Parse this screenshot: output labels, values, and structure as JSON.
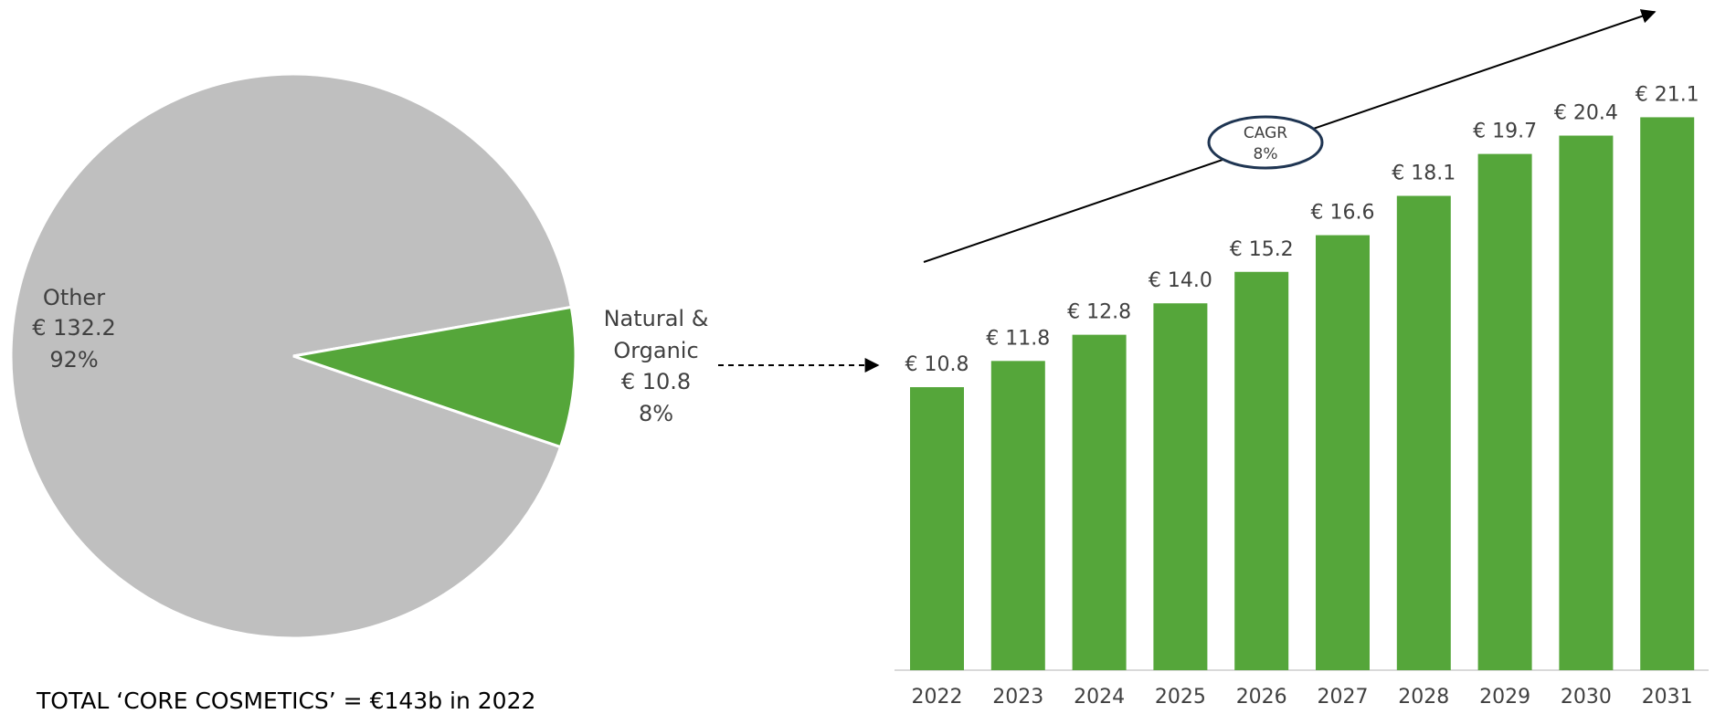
{
  "chart_data": [
    {
      "type": "pie",
      "categories": [
        "Other",
        "Natural & Organic"
      ],
      "values": [
        92,
        8
      ],
      "value_labels": [
        "92%",
        "8%"
      ],
      "amounts": [
        132.2,
        10.8
      ],
      "amount_labels": [
        "€ 132.2",
        "€ 10.8"
      ],
      "colors": [
        "#bfbfbf",
        "#55a63a"
      ],
      "note": "TOTAL ‘CORE COSMETICS’ = €143b in 2022"
    },
    {
      "type": "bar",
      "categories": [
        "2022",
        "2023",
        "2024",
        "2025",
        "2026",
        "2027",
        "2028",
        "2029",
        "2030",
        "2031"
      ],
      "values": [
        10.8,
        11.8,
        12.8,
        14.0,
        15.2,
        16.6,
        18.1,
        19.7,
        20.4,
        21.1
      ],
      "value_labels": [
        "€ 10.8",
        "€ 11.8",
        "€ 12.8",
        "€ 14.0",
        "€ 15.2",
        "€ 16.6",
        "€ 18.1",
        "€ 19.7",
        "€ 20.4",
        "€ 21.1"
      ],
      "color": "#55a63a",
      "annotation": [
        "CAGR",
        "8%"
      ]
    }
  ]
}
